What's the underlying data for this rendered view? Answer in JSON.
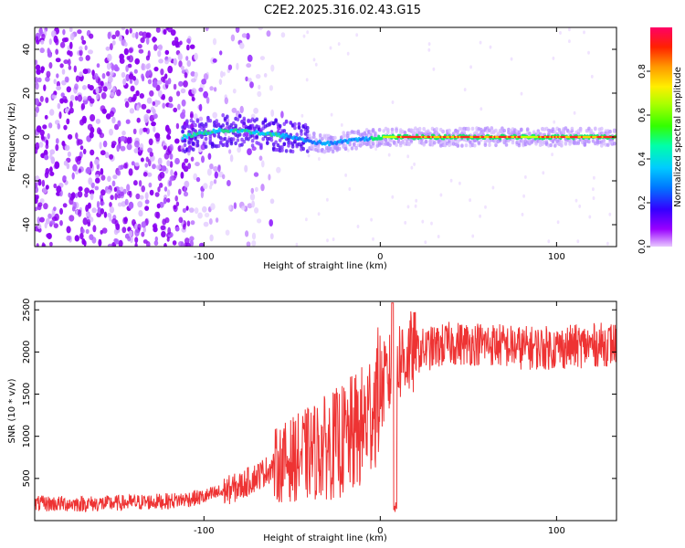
{
  "title": "C2E2.2025.316.02.43.G15",
  "chart_data": [
    {
      "type": "heatmap",
      "xlabel": "Height of straight line (km)",
      "ylabel": "Frequency (Hz)",
      "xlim": [
        -196,
        134
      ],
      "ylim": [
        -50,
        50
      ],
      "xticks": [
        -100,
        0,
        100
      ],
      "yticks": [
        -40,
        -20,
        0,
        20,
        40
      ],
      "colorbar": {
        "label": "Normalized spectral amplitude",
        "range": [
          0,
          1
        ],
        "ticks": [
          0.0,
          0.2,
          0.4,
          0.6,
          0.8
        ]
      },
      "features": {
        "noise_region_x": [
          -196,
          -50
        ],
        "signal_start_x": -112,
        "signal_track": [
          {
            "x": -112,
            "f": 0
          },
          {
            "x": -100,
            "f": 2
          },
          {
            "x": -90,
            "f": 3
          },
          {
            "x": -80,
            "f": 3
          },
          {
            "x": -70,
            "f": 2
          },
          {
            "x": -60,
            "f": 1
          },
          {
            "x": -50,
            "f": 0
          },
          {
            "x": -40,
            "f": -2
          },
          {
            "x": -30,
            "f": -3
          },
          {
            "x": -20,
            "f": -2
          },
          {
            "x": -10,
            "f": -1
          },
          {
            "x": 0,
            "f": 0
          },
          {
            "x": 134,
            "f": 0
          }
        ]
      }
    },
    {
      "type": "line",
      "xlabel": "Height of straight line (km)",
      "ylabel": "SNR (10 * v/v)",
      "xlim": [
        -196,
        134
      ],
      "ylim": [
        0,
        2600
      ],
      "xticks": [
        -100,
        0,
        100
      ],
      "yticks": [
        500,
        1000,
        1500,
        2000,
        2500
      ],
      "color": "#ee3333",
      "series": [
        {
          "name": "SNR",
          "x": [
            -196,
            -160,
            -120,
            -100,
            -80,
            -60,
            -40,
            -20,
            -10,
            0,
            5,
            10,
            20,
            30,
            40,
            60,
            80,
            100,
            134
          ],
          "values": [
            200,
            200,
            230,
            280,
            400,
            650,
            800,
            950,
            1100,
            1550,
            1700,
            1900,
            2000,
            2050,
            2100,
            2100,
            2050,
            2050,
            2100
          ]
        }
      ]
    }
  ]
}
